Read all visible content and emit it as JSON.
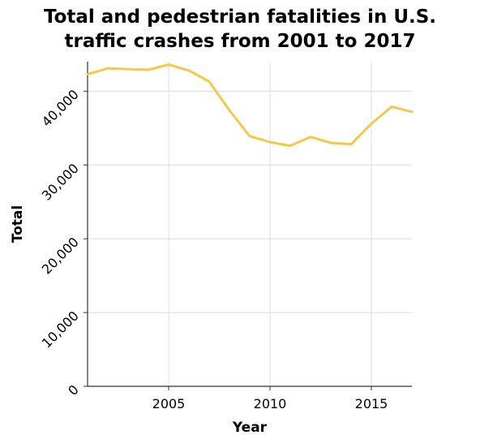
{
  "chart_data": {
    "type": "line",
    "title_lines": [
      "Total and pedestrian fatalities in U.S.",
      "traffic crashes from 2001 to 2017"
    ],
    "xlabel": "Year",
    "ylabel": "Total",
    "xlim": [
      2001,
      2017
    ],
    "ylim": [
      0,
      44000
    ],
    "x_ticks": [
      {
        "value": 2005,
        "label": "2005"
      },
      {
        "value": 2010,
        "label": "2010"
      },
      {
        "value": 2015,
        "label": "2015"
      }
    ],
    "y_ticks": [
      {
        "value": 0,
        "label": "0"
      },
      {
        "value": 10000,
        "label": "10,000"
      },
      {
        "value": 20000,
        "label": "20,000"
      },
      {
        "value": 30000,
        "label": "30,000"
      },
      {
        "value": 40000,
        "label": "40,000"
      }
    ],
    "grid": true,
    "series": [
      {
        "color": "#f2c94c",
        "x": [
          2001,
          2002,
          2003,
          2004,
          2005,
          2006,
          2007,
          2008,
          2009,
          2010,
          2011,
          2012,
          2013,
          2014,
          2015,
          2016,
          2017
        ],
        "y": [
          42300,
          43100,
          43000,
          42900,
          43600,
          42800,
          41300,
          37400,
          33900,
          33100,
          32600,
          33800,
          33000,
          32800,
          35600,
          37900,
          37200
        ]
      }
    ]
  }
}
